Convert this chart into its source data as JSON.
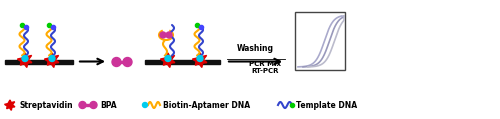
{
  "bg_color": "#ffffff",
  "platform_color": "#111111",
  "streptavidin_color": "#dd0000",
  "bpa_color": "#cc3399",
  "biotin_color": "#00ccee",
  "aptamer_color": "#ffaa00",
  "template_color": "#3344cc",
  "green_color": "#00cc00",
  "red_tip_color": "#ff3300",
  "text_washing": "Washing",
  "text_pcr": "PCR Mix",
  "text_rt": "RT-PCR",
  "legend_labels": [
    "Streptavidin",
    "BPA",
    "Biotin-Aptamer DNA",
    "Template DNA"
  ],
  "pcr_colors": [
    "#aaaacc",
    "#9999bb",
    "#bbbbcc"
  ]
}
